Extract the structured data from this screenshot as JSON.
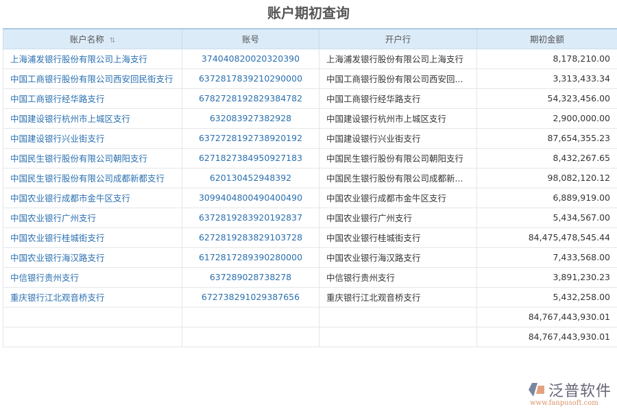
{
  "title": "账户期初查询",
  "columns": {
    "name": "账户名称",
    "account": "账号",
    "bank": "开户行",
    "amount": "期初金额"
  },
  "rows": [
    {
      "name": "上海浦发银行股份有限公司上海支行",
      "account": "374040820020320390",
      "bank": "上海浦发银行股份有限公司上海支行",
      "amount": "8,178,210.00"
    },
    {
      "name": "中国工商银行股份有限公司西安回民街支行",
      "account": "6372817839210290000",
      "bank": "中国工商银行股份有限公司西安回...",
      "amount": "3,313,433.34"
    },
    {
      "name": "中国工商银行经华路支行",
      "account": "6782728192829384782",
      "bank": "中国工商银行经华路支行",
      "amount": "54,323,456.00"
    },
    {
      "name": "中国建设银行杭州市上城区支行",
      "account": "632083927382928",
      "bank": "中国建设银行杭州市上城区支行",
      "amount": "2,900,000.00"
    },
    {
      "name": "中国建设银行兴业街支行",
      "account": "6372728192738920192",
      "bank": "中国建设银行兴业街支行",
      "amount": "87,654,355.23"
    },
    {
      "name": "中国民生银行股份有限公司朝阳支行",
      "account": "6271827384950927183",
      "bank": "中国民生银行股份有限公司朝阳支行",
      "amount": "8,432,267.65"
    },
    {
      "name": "中国民生银行股份有限公司成都新都支行",
      "account": "620130452948392",
      "bank": "中国民生银行股份有限公司成都新...",
      "amount": "98,082,120.12"
    },
    {
      "name": "中国农业银行成都市金牛区支行",
      "account": "3099404800490400490",
      "bank": "中国农业银行成都市金牛区支行",
      "amount": "6,889,919.00"
    },
    {
      "name": "中国农业银行广州支行",
      "account": "6372819283920192837",
      "bank": "中国农业银行广州支行",
      "amount": "5,434,567.00"
    },
    {
      "name": "中国农业银行桂城街支行",
      "account": "6272819283829103728",
      "bank": "中国农业银行桂城街支行",
      "amount": "84,475,478,545.44"
    },
    {
      "name": "中国农业银行海汉路支行",
      "account": "6172817289390280000",
      "bank": "中国农业银行海汉路支行",
      "amount": "7,433,568.00"
    },
    {
      "name": "中信银行贵州支行",
      "account": "637289028738278",
      "bank": "中信银行贵州支行",
      "amount": "3,891,230.23"
    },
    {
      "name": "重庆银行江北观音桥支行",
      "account": "672738291029387656",
      "bank": "重庆银行江北观音桥支行",
      "amount": "5,432,258.00"
    }
  ],
  "totals": [
    "84,767,443,930.01",
    "84,767,443,930.01"
  ],
  "logo": {
    "name": "泛普软件",
    "url": "www.fanpusoft.com"
  },
  "colors": {
    "link": "#2a6fb0",
    "header_bg": "#dcebf8"
  }
}
